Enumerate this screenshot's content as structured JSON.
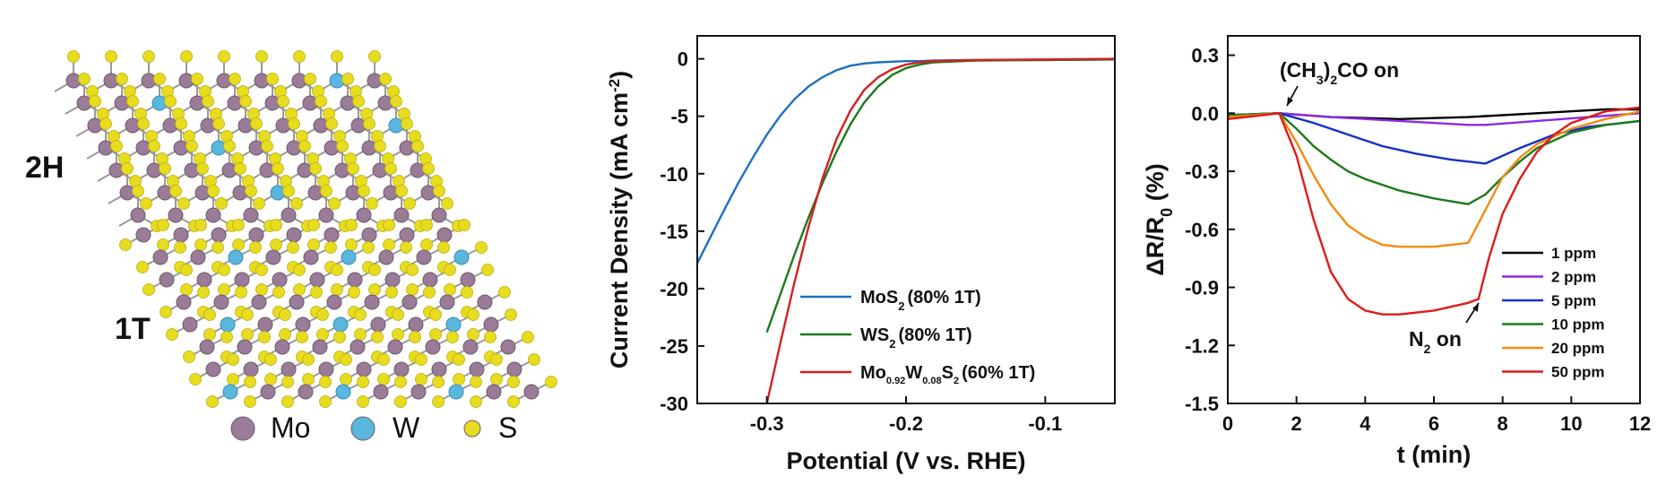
{
  "structure_panel": {
    "phase_top": "2H",
    "phase_bottom": "1T",
    "legend": [
      {
        "name": "Mo",
        "color": "#9a7b98"
      },
      {
        "name": "W",
        "color": "#59b6dc"
      },
      {
        "name": "S",
        "color": "#e8dc1e"
      }
    ]
  },
  "chart_data": [
    {
      "type": "line",
      "ylabel": "Current Density (mA cm",
      "ylabel_sup": "-2",
      "ylabel_close": ")",
      "xlabel": "Potential (V vs. RHE)",
      "xlim": [
        -0.35,
        -0.05
      ],
      "ylim": [
        -30,
        2
      ],
      "xticks": [
        -0.3,
        -0.2,
        -0.1
      ],
      "yticks": [
        0,
        -5,
        -10,
        -15,
        -20,
        -25,
        -30
      ],
      "legend_position": "bottom-right",
      "series": [
        {
          "name": "MoS",
          "sub": "2",
          "rest": "(80%  1T)",
          "color": "#1f6fc0",
          "x": [
            -0.35,
            -0.34,
            -0.33,
            -0.32,
            -0.31,
            -0.3,
            -0.29,
            -0.28,
            -0.27,
            -0.26,
            -0.25,
            -0.24,
            -0.23,
            -0.22,
            -0.21,
            -0.2,
            -0.19,
            -0.18,
            -0.15,
            -0.1,
            -0.05
          ],
          "y": [
            -17.8,
            -15.4,
            -13.0,
            -10.7,
            -8.6,
            -6.6,
            -4.9,
            -3.5,
            -2.4,
            -1.6,
            -1.0,
            -0.6,
            -0.4,
            -0.3,
            -0.25,
            -0.2,
            -0.2,
            -0.15,
            -0.1,
            -0.1,
            -0.05
          ]
        },
        {
          "name": "WS",
          "sub": "2",
          "rest": "(80%  1T)",
          "color": "#1c7a1c",
          "x": [
            -0.3,
            -0.29,
            -0.28,
            -0.27,
            -0.26,
            -0.25,
            -0.24,
            -0.23,
            -0.22,
            -0.21,
            -0.2,
            -0.19,
            -0.18,
            -0.15,
            -0.1,
            -0.05
          ],
          "y": [
            -23.8,
            -20.4,
            -17.0,
            -13.8,
            -10.8,
            -8.1,
            -5.7,
            -3.8,
            -2.4,
            -1.4,
            -0.8,
            -0.5,
            -0.3,
            -0.15,
            -0.1,
            -0.05
          ]
        },
        {
          "name": "Mo",
          "sub": "0.92",
          "name2": "W",
          "sub2": "0.08",
          "name3": "S",
          "sub3": "2",
          "rest": "(60%  1T)",
          "color": "#d42020",
          "x": [
            -0.3,
            -0.29,
            -0.28,
            -0.27,
            -0.26,
            -0.25,
            -0.24,
            -0.23,
            -0.22,
            -0.21,
            -0.2,
            -0.19,
            -0.18,
            -0.15,
            -0.1,
            -0.05
          ],
          "y": [
            -30.0,
            -24.6,
            -19.4,
            -14.6,
            -10.4,
            -7.0,
            -4.5,
            -2.7,
            -1.6,
            -0.9,
            -0.5,
            -0.3,
            -0.2,
            -0.1,
            -0.05,
            0.0
          ]
        }
      ]
    },
    {
      "type": "line",
      "ylabel": "ΔR/R",
      "ylabel_sub": "0",
      "ylabel_close": " (%)",
      "xlabel": "t (min)",
      "xlim": [
        0,
        12
      ],
      "ylim": [
        -1.5,
        0.4
      ],
      "xticks": [
        0,
        2,
        4,
        6,
        8,
        10,
        12
      ],
      "yticks": [
        0.3,
        0.0,
        -0.3,
        -0.6,
        -0.9,
        -1.2,
        -1.5
      ],
      "ytick_labels": [
        "0.3",
        "0.0",
        "-0.3",
        "-0.6",
        "-0.9",
        "-1.2",
        "-1.5"
      ],
      "legend_position": "bottom-right",
      "annotations": {
        "on_a": "(CH",
        "on_sub1": "3",
        "on_b": ")",
        "on_sub2": "2",
        "on_c": "CO on",
        "off_a": "N",
        "off_sub": "2",
        "off_b": " on"
      },
      "series": [
        {
          "name": "1 ppm",
          "color": "#000000",
          "x": [
            0,
            1.5,
            3,
            5,
            7,
            9,
            11,
            12
          ],
          "y": [
            -0.01,
            0.0,
            -0.02,
            -0.03,
            -0.02,
            0.0,
            0.02,
            0.02
          ]
        },
        {
          "name": "2 ppm",
          "color": "#8a2be2",
          "x": [
            0,
            1.5,
            3,
            5,
            7,
            7.5,
            9,
            10.5,
            12
          ],
          "y": [
            -0.01,
            0.0,
            -0.02,
            -0.04,
            -0.06,
            -0.06,
            -0.04,
            -0.02,
            0.0
          ]
        },
        {
          "name": "5 ppm",
          "color": "#1530c8",
          "x": [
            0,
            1.5,
            2.5,
            3.5,
            4.5,
            5.5,
            6.5,
            7.5,
            8.5,
            9.5,
            10.5,
            12
          ],
          "y": [
            -0.01,
            0.0,
            -0.05,
            -0.11,
            -0.17,
            -0.21,
            -0.24,
            -0.26,
            -0.18,
            -0.11,
            -0.07,
            -0.04
          ]
        },
        {
          "name": "10 ppm",
          "color": "#1c7a1c",
          "x": [
            0,
            1.5,
            2.0,
            2.5,
            3.0,
            3.5,
            4.0,
            5.0,
            6.0,
            7.0,
            7.5,
            8.0,
            8.5,
            9.0,
            10.0,
            11.0,
            12.0
          ],
          "y": [
            -0.01,
            0.0,
            -0.08,
            -0.17,
            -0.24,
            -0.3,
            -0.34,
            -0.4,
            -0.44,
            -0.47,
            -0.42,
            -0.33,
            -0.25,
            -0.18,
            -0.1,
            -0.06,
            -0.04
          ]
        },
        {
          "name": "20 ppm",
          "color": "#f08c10",
          "x": [
            0,
            1.5,
            2.0,
            2.5,
            3.0,
            3.5,
            4.0,
            4.5,
            5.0,
            6.0,
            7.0,
            7.5,
            8.0,
            8.5,
            9.0,
            10.0,
            11.0,
            12.0
          ],
          "y": [
            -0.02,
            0.0,
            -0.15,
            -0.32,
            -0.47,
            -0.58,
            -0.64,
            -0.68,
            -0.69,
            -0.69,
            -0.67,
            -0.5,
            -0.33,
            -0.23,
            -0.16,
            -0.08,
            -0.03,
            0.01
          ]
        },
        {
          "name": "50 ppm",
          "color": "#e01a1a",
          "x": [
            0,
            1.5,
            2.0,
            2.5,
            3.0,
            3.5,
            4.0,
            4.5,
            5.0,
            6.0,
            7.0,
            7.3,
            7.6,
            8.0,
            8.5,
            9.0,
            9.5,
            10.0,
            11.0,
            12.0
          ],
          "y": [
            -0.03,
            0.0,
            -0.22,
            -0.55,
            -0.82,
            -0.96,
            -1.02,
            -1.04,
            -1.04,
            -1.02,
            -0.98,
            -0.96,
            -0.75,
            -0.52,
            -0.34,
            -0.2,
            -0.11,
            -0.05,
            0.01,
            0.03
          ]
        }
      ]
    }
  ]
}
